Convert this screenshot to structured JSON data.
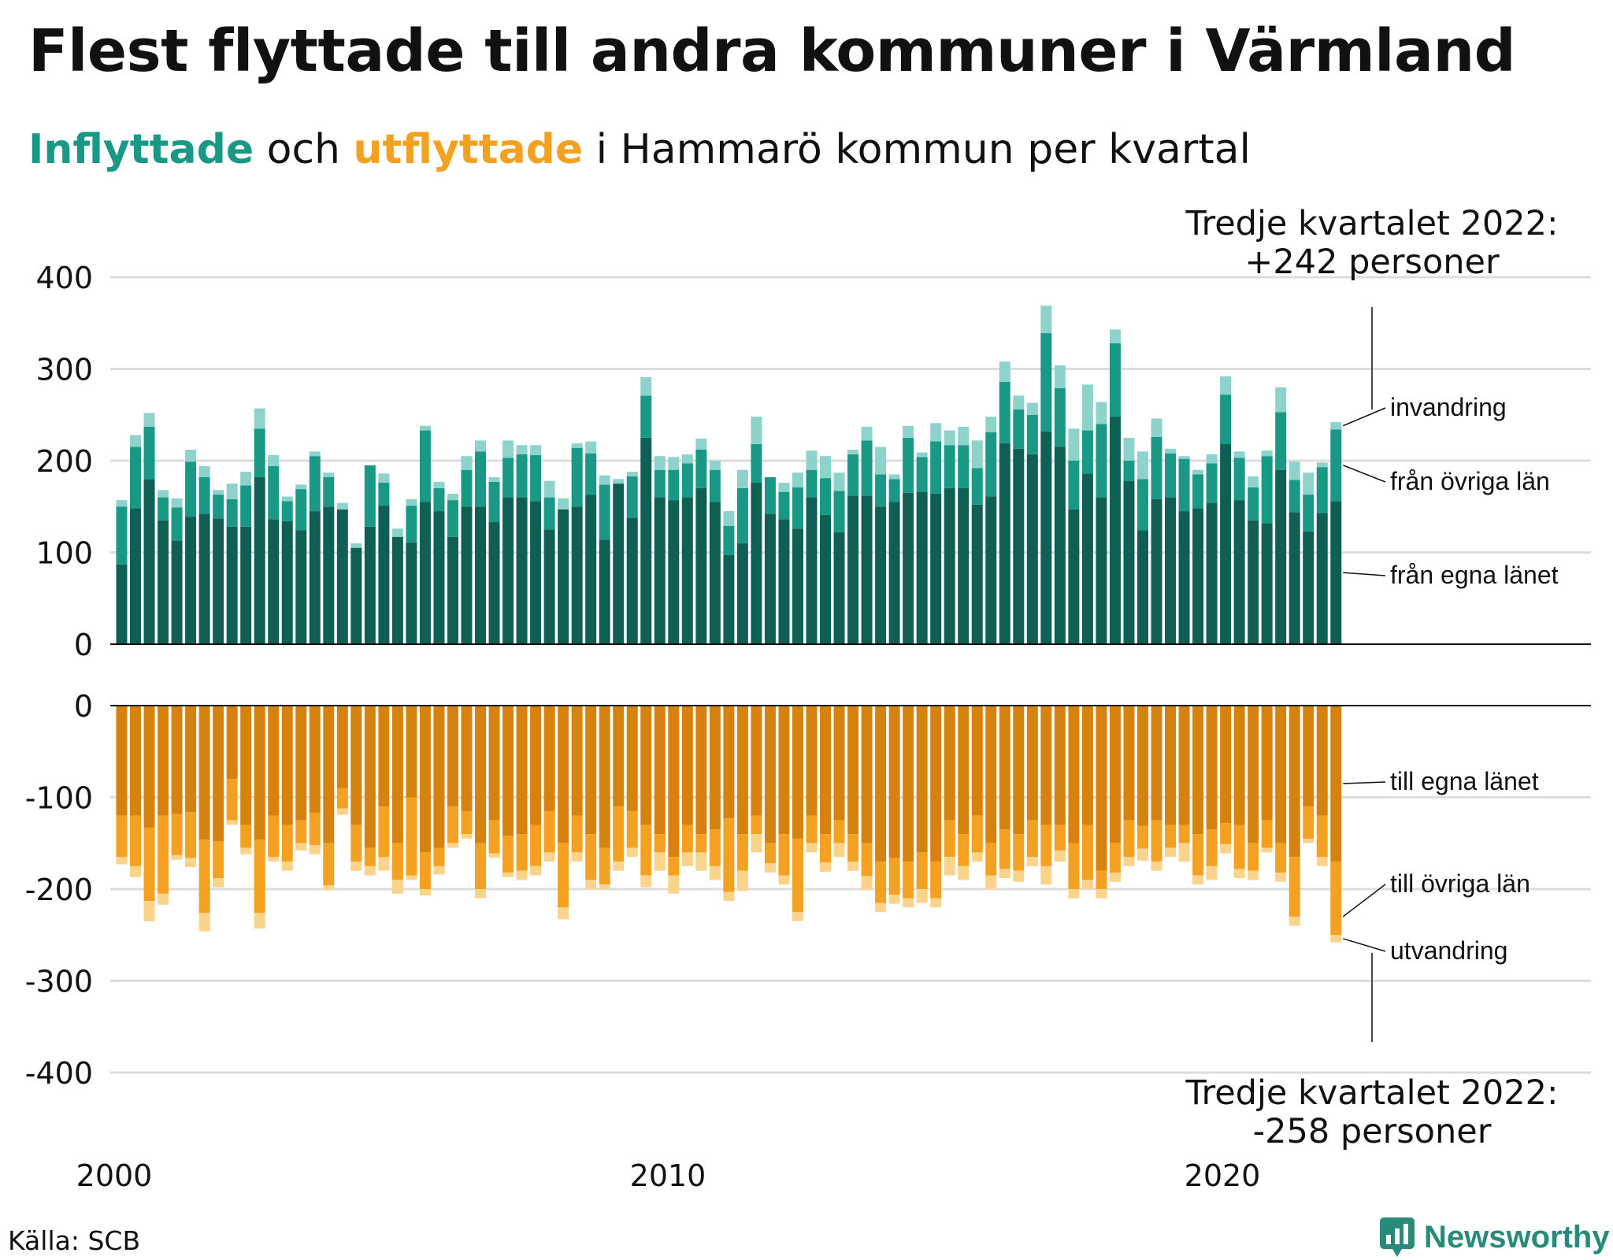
{
  "title": "Flest flyttade till andra kommuner i Värmland",
  "subtitle": {
    "part1": "Inflyttade",
    "part2": " och ",
    "part3": "utflyttade",
    "part4": " i Hammarö kommun per kvartal"
  },
  "source": "Källa: SCB",
  "brand": "Newsworthy",
  "colors": {
    "in_egna": "#0f5f55",
    "in_ovriga": "#1a9886",
    "in_invandring": "#8ed3cb",
    "out_egna": "#d5820f",
    "out_ovriga": "#f4a020",
    "out_utvandring": "#fbd38b",
    "grid": "#dddddd"
  },
  "chart_data": {
    "type": "bar",
    "stacked": true,
    "x_start_year": 2000,
    "x_tick_labels": [
      "2000",
      "2010",
      "2020"
    ],
    "upper": {
      "yticks": [
        0,
        100,
        200,
        300,
        400
      ],
      "ylim": [
        0,
        400
      ],
      "series": [
        {
          "name": "från egna länet",
          "values": [
            87,
            148,
            180,
            135,
            113,
            139,
            142,
            137,
            128,
            128,
            182,
            136,
            134,
            124,
            145,
            150,
            147,
            105,
            128,
            151,
            117,
            111,
            155,
            145,
            117,
            150,
            150,
            133,
            160,
            160,
            156,
            125,
            147,
            150,
            163,
            114,
            175,
            138,
            225,
            160,
            157,
            160,
            170,
            155,
            97,
            110,
            176,
            142,
            136,
            126,
            160,
            141,
            122,
            162,
            162,
            150,
            155,
            165,
            166,
            164,
            170,
            170,
            152,
            161,
            219,
            213,
            207,
            232,
            215,
            147,
            186,
            160,
            248,
            178,
            124,
            158,
            160,
            145,
            148,
            154,
            218,
            157,
            135,
            132,
            190,
            144,
            123,
            143,
            156
          ]
        },
        {
          "name": "från övriga län",
          "values": [
            63,
            67,
            57,
            25,
            36,
            60,
            40,
            26,
            30,
            45,
            53,
            58,
            22,
            45,
            60,
            32,
            0,
            0,
            67,
            25,
            0,
            40,
            78,
            25,
            40,
            40,
            60,
            44,
            43,
            47,
            50,
            35,
            0,
            64,
            45,
            60,
            0,
            45,
            46,
            30,
            33,
            37,
            42,
            35,
            32,
            60,
            42,
            40,
            30,
            45,
            30,
            40,
            45,
            45,
            60,
            35,
            25,
            60,
            38,
            57,
            47,
            47,
            40,
            70,
            67,
            43,
            43,
            107,
            64,
            53,
            47,
            80,
            80,
            22,
            56,
            68,
            48,
            57,
            37,
            43,
            54,
            46,
            36,
            73,
            63,
            35,
            40,
            50,
            78
          ]
        },
        {
          "name": "invandring",
          "values": [
            7,
            13,
            15,
            8,
            10,
            13,
            12,
            5,
            17,
            15,
            22,
            12,
            5,
            5,
            5,
            5,
            7,
            5,
            0,
            10,
            9,
            7,
            5,
            7,
            7,
            15,
            12,
            5,
            19,
            10,
            11,
            18,
            12,
            5,
            13,
            10,
            5,
            5,
            20,
            15,
            14,
            10,
            12,
            10,
            16,
            20,
            30,
            0,
            10,
            16,
            21,
            24,
            20,
            5,
            15,
            30,
            5,
            13,
            5,
            20,
            16,
            20,
            30,
            17,
            22,
            15,
            13,
            30,
            25,
            35,
            50,
            24,
            15,
            25,
            30,
            20,
            5,
            3,
            5,
            10,
            20,
            7,
            12,
            6,
            27,
            20,
            24,
            5,
            8
          ]
        }
      ]
    },
    "lower": {
      "yticks": [
        0,
        -100,
        -200,
        -300,
        -400
      ],
      "ylim": [
        -400,
        0
      ],
      "series": [
        {
          "name": "till egna länet",
          "values": [
            -120,
            -120,
            -133,
            -120,
            -118,
            -116,
            -146,
            -148,
            -80,
            -130,
            -146,
            -120,
            -130,
            -125,
            -117,
            -150,
            -90,
            -130,
            -155,
            -110,
            -150,
            -100,
            -160,
            -155,
            -110,
            -115,
            -150,
            -125,
            -142,
            -140,
            -130,
            -115,
            -150,
            -120,
            -140,
            -155,
            -110,
            -115,
            -130,
            -140,
            -165,
            -130,
            -140,
            -135,
            -123,
            -140,
            -120,
            -150,
            -140,
            -145,
            -120,
            -140,
            -125,
            -140,
            -150,
            -170,
            -166,
            -170,
            -160,
            -170,
            -125,
            -140,
            -120,
            -150,
            -135,
            -140,
            -125,
            -130,
            -130,
            -150,
            -130,
            -180,
            -150,
            -125,
            -131,
            -125,
            -130,
            -130,
            -140,
            -135,
            -128,
            -130,
            -150,
            -125,
            -150,
            -165,
            -110,
            -120,
            -170
          ]
        },
        {
          "name": "till övriga län",
          "values": [
            -45,
            -55,
            -80,
            -85,
            -45,
            -50,
            -80,
            -40,
            -45,
            -25,
            -80,
            -45,
            -40,
            -25,
            -35,
            -46,
            -22,
            -40,
            -20,
            -55,
            -40,
            -85,
            -40,
            -20,
            -40,
            -25,
            -50,
            -36,
            -40,
            -40,
            -45,
            -45,
            -70,
            -40,
            -50,
            -40,
            -60,
            -40,
            -55,
            -20,
            -20,
            -30,
            -20,
            -40,
            -80,
            -40,
            -20,
            -22,
            -45,
            -80,
            -30,
            -31,
            -25,
            -30,
            -36,
            -45,
            -40,
            -40,
            -40,
            -40,
            -40,
            -35,
            -40,
            -35,
            -43,
            -40,
            -40,
            -45,
            -28,
            -50,
            -60,
            -20,
            -32,
            -40,
            -25,
            -45,
            -25,
            -20,
            -45,
            -40,
            -23,
            -48,
            -30,
            -30,
            -32,
            -65,
            -35,
            -45,
            -80
          ]
        },
        {
          "name": "utvandring",
          "values": [
            -8,
            -12,
            -22,
            -12,
            -5,
            -10,
            -20,
            -10,
            -5,
            -7,
            -17,
            -5,
            -10,
            -8,
            -10,
            -5,
            -7,
            -10,
            -10,
            -15,
            -15,
            -5,
            -7,
            -9,
            -5,
            -5,
            -10,
            -5,
            -5,
            -10,
            -10,
            -10,
            -13,
            -10,
            -10,
            -5,
            -10,
            -10,
            -13,
            -20,
            -20,
            -15,
            -20,
            -15,
            -10,
            -22,
            -20,
            -10,
            -10,
            -10,
            -10,
            -10,
            -15,
            -10,
            -15,
            -10,
            -10,
            -10,
            -15,
            -10,
            -20,
            -15,
            -10,
            -15,
            -10,
            -12,
            -10,
            -20,
            -12,
            -10,
            -10,
            -10,
            -10,
            -10,
            -13,
            -10,
            -10,
            -20,
            -10,
            -15,
            -10,
            -10,
            -10,
            -5,
            -10,
            -10,
            -5,
            -10,
            -8
          ]
        }
      ]
    },
    "annotations": {
      "top_line1": "Tredje kvartalet 2022:",
      "top_line2": "+242 personer",
      "bottom_line1": "Tredje kvartalet 2022:",
      "bottom_line2": "-258 personer"
    }
  }
}
